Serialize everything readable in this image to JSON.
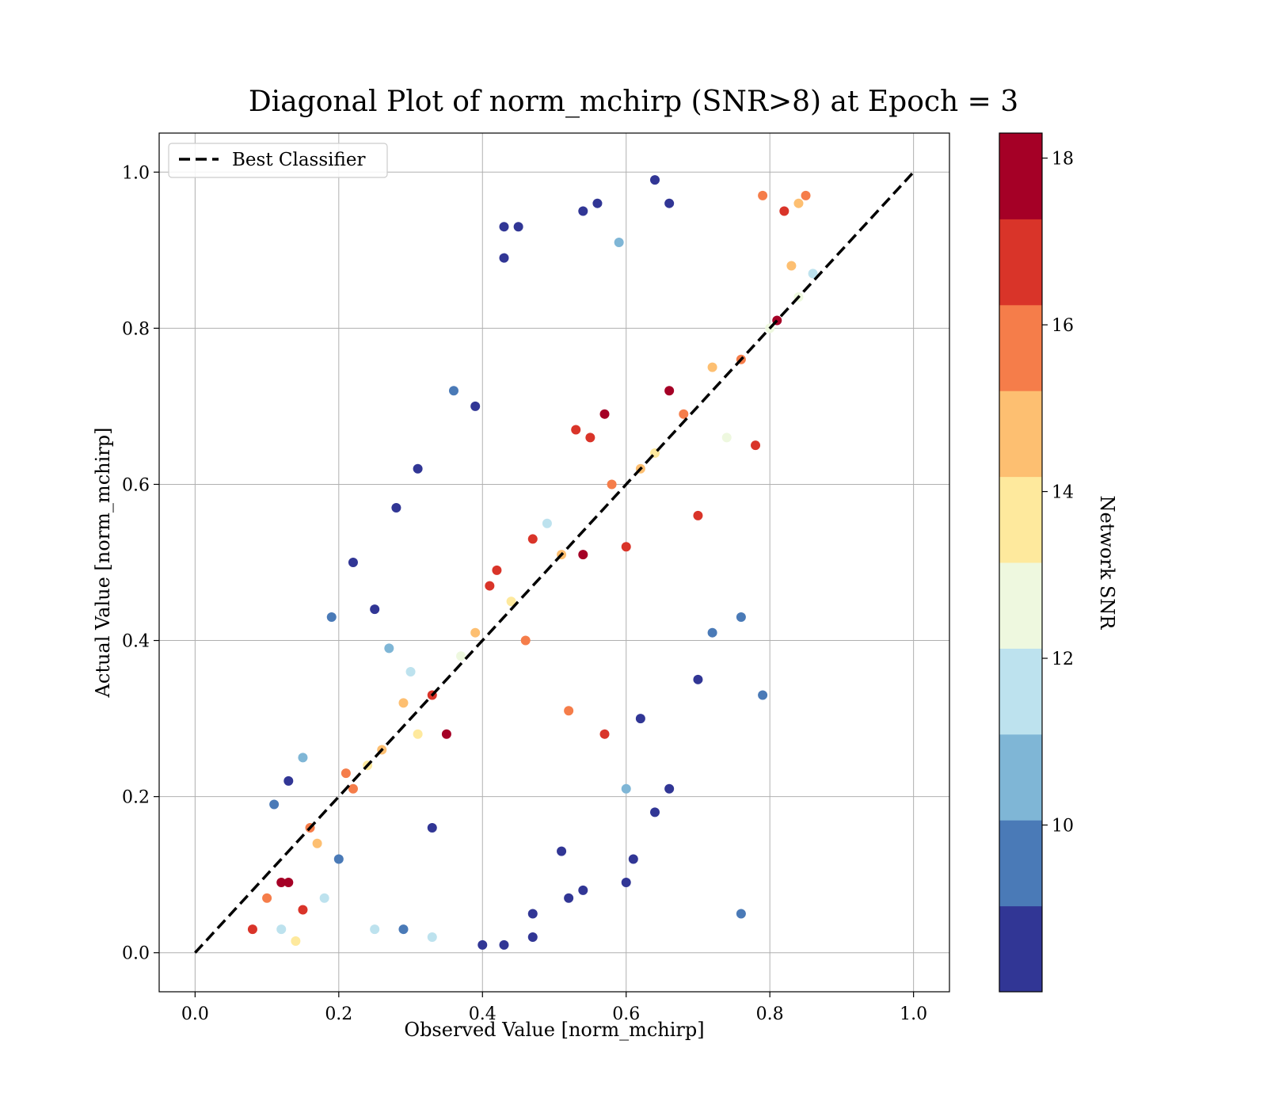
{
  "chart_data": {
    "type": "scatter",
    "title": "Diagonal Plot of norm_mchirp (SNR>8) at Epoch = 3",
    "xlabel": "Observed Value [norm_mchirp]",
    "ylabel": "Actual Value [norm_mchirp]",
    "xlim": [
      -0.05,
      1.05
    ],
    "ylim": [
      -0.05,
      1.05
    ],
    "xticks": [
      0.0,
      0.2,
      0.4,
      0.6,
      0.8,
      1.0
    ],
    "yticks": [
      0.0,
      0.2,
      0.4,
      0.6,
      0.8,
      1.0
    ],
    "x_tick_labels": [
      "0.0",
      "0.2",
      "0.4",
      "0.6",
      "0.8",
      "1.0"
    ],
    "y_tick_labels": [
      "0.0",
      "0.2",
      "0.4",
      "0.6",
      "0.8",
      "1.0"
    ],
    "grid": true,
    "legend": {
      "placement": "upper-left",
      "entries": [
        "Best Classifier"
      ]
    },
    "reference_line": {
      "name": "Best Classifier",
      "style": "dashed",
      "color": "#000000",
      "x": [
        0.0,
        1.0
      ],
      "y": [
        0.0,
        1.0
      ]
    },
    "colorbar": {
      "label": "Network SNR",
      "range": [
        8.0,
        18.3
      ],
      "ticks": [
        10,
        12,
        14,
        16,
        18
      ],
      "tick_labels": [
        "10",
        "12",
        "14",
        "16",
        "18"
      ],
      "bins": [
        {
          "from": 8.0,
          "to": 9.03,
          "color": "#313695"
        },
        {
          "from": 9.03,
          "to": 10.06,
          "color": "#4a7ab7"
        },
        {
          "from": 10.06,
          "to": 11.09,
          "color": "#7fb6d6"
        },
        {
          "from": 11.09,
          "to": 12.12,
          "color": "#bde2ee"
        },
        {
          "from": 12.12,
          "to": 13.15,
          "color": "#eef8df"
        },
        {
          "from": 13.15,
          "to": 14.18,
          "color": "#fee99d"
        },
        {
          "from": 14.18,
          "to": 15.21,
          "color": "#fdbf71"
        },
        {
          "from": 15.21,
          "to": 16.24,
          "color": "#f57d4a"
        },
        {
          "from": 16.24,
          "to": 17.27,
          "color": "#d93429"
        },
        {
          "from": 17.27,
          "to": 18.3,
          "color": "#a50026"
        }
      ]
    },
    "points": [
      [
        0.08,
        0.03,
        16.8
      ],
      [
        0.1,
        0.07,
        15.8
      ],
      [
        0.12,
        0.09,
        17.5
      ],
      [
        0.13,
        0.09,
        17.8
      ],
      [
        0.14,
        0.015,
        13.6
      ],
      [
        0.12,
        0.03,
        11.5
      ],
      [
        0.11,
        0.19,
        9.5
      ],
      [
        0.13,
        0.22,
        8.3
      ],
      [
        0.15,
        0.25,
        10.5
      ],
      [
        0.16,
        0.16,
        16.0
      ],
      [
        0.17,
        0.14,
        15.0
      ],
      [
        0.15,
        0.055,
        16.5
      ],
      [
        0.18,
        0.07,
        11.5
      ],
      [
        0.2,
        0.12,
        9.8
      ],
      [
        0.22,
        0.21,
        15.8
      ],
      [
        0.24,
        0.24,
        13.4
      ],
      [
        0.26,
        0.26,
        14.6
      ],
      [
        0.21,
        0.23,
        16.2
      ],
      [
        0.19,
        0.43,
        9.2
      ],
      [
        0.22,
        0.5,
        8.4
      ],
      [
        0.25,
        0.44,
        8.6
      ],
      [
        0.27,
        0.39,
        10.8
      ],
      [
        0.29,
        0.32,
        14.4
      ],
      [
        0.3,
        0.36,
        11.8
      ],
      [
        0.31,
        0.28,
        13.2
      ],
      [
        0.33,
        0.33,
        16.4
      ],
      [
        0.35,
        0.28,
        17.6
      ],
      [
        0.37,
        0.38,
        12.6
      ],
      [
        0.39,
        0.41,
        14.2
      ],
      [
        0.41,
        0.47,
        17.0
      ],
      [
        0.42,
        0.49,
        16.8
      ],
      [
        0.44,
        0.45,
        13.8
      ],
      [
        0.46,
        0.4,
        15.6
      ],
      [
        0.47,
        0.53,
        16.6
      ],
      [
        0.49,
        0.55,
        11.6
      ],
      [
        0.51,
        0.51,
        14.8
      ],
      [
        0.53,
        0.67,
        17.2
      ],
      [
        0.54,
        0.51,
        17.9
      ],
      [
        0.55,
        0.66,
        16.5
      ],
      [
        0.57,
        0.69,
        17.9
      ],
      [
        0.58,
        0.6,
        15.4
      ],
      [
        0.6,
        0.52,
        16.9
      ],
      [
        0.62,
        0.62,
        14.9
      ],
      [
        0.64,
        0.64,
        13.5
      ],
      [
        0.66,
        0.72,
        17.8
      ],
      [
        0.68,
        0.69,
        15.9
      ],
      [
        0.7,
        0.56,
        16.9
      ],
      [
        0.72,
        0.75,
        14.2
      ],
      [
        0.74,
        0.66,
        12.3
      ],
      [
        0.76,
        0.76,
        16.2
      ],
      [
        0.78,
        0.65,
        16.9
      ],
      [
        0.8,
        0.8,
        13.0
      ],
      [
        0.81,
        0.81,
        17.9
      ],
      [
        0.82,
        0.95,
        17.0
      ],
      [
        0.84,
        0.96,
        14.6
      ],
      [
        0.85,
        0.97,
        16.0
      ],
      [
        0.83,
        0.88,
        15.0
      ],
      [
        0.79,
        0.97,
        15.3
      ],
      [
        0.84,
        0.84,
        12.6
      ],
      [
        0.86,
        0.87,
        11.5
      ],
      [
        0.28,
        0.57,
        8.6
      ],
      [
        0.31,
        0.62,
        8.3
      ],
      [
        0.36,
        0.72,
        9.9
      ],
      [
        0.39,
        0.7,
        8.3
      ],
      [
        0.43,
        0.93,
        8.2
      ],
      [
        0.45,
        0.93,
        8.4
      ],
      [
        0.43,
        0.89,
        8.6
      ],
      [
        0.54,
        0.95,
        8.5
      ],
      [
        0.56,
        0.96,
        8.3
      ],
      [
        0.59,
        0.91,
        10.4
      ],
      [
        0.64,
        0.99,
        8.5
      ],
      [
        0.66,
        0.96,
        8.3
      ],
      [
        0.6,
        0.21,
        10.3
      ],
      [
        0.62,
        0.3,
        8.3
      ],
      [
        0.64,
        0.18,
        8.4
      ],
      [
        0.66,
        0.21,
        8.5
      ],
      [
        0.6,
        0.09,
        8.4
      ],
      [
        0.61,
        0.12,
        8.3
      ],
      [
        0.52,
        0.07,
        8.6
      ],
      [
        0.54,
        0.08,
        8.4
      ],
      [
        0.47,
        0.05,
        8.2
      ],
      [
        0.43,
        0.01,
        8.4
      ],
      [
        0.4,
        0.01,
        8.2
      ],
      [
        0.33,
        0.02,
        11.4
      ],
      [
        0.29,
        0.03,
        9.5
      ],
      [
        0.25,
        0.03,
        11.3
      ],
      [
        0.76,
        0.05,
        9.5
      ],
      [
        0.79,
        0.33,
        10.0
      ],
      [
        0.76,
        0.43,
        9.7
      ],
      [
        0.72,
        0.41,
        9.8
      ],
      [
        0.7,
        0.35,
        8.6
      ],
      [
        0.57,
        0.28,
        16.7
      ],
      [
        0.52,
        0.31,
        16.1
      ],
      [
        0.47,
        0.02,
        8.3
      ],
      [
        0.51,
        0.13,
        8.5
      ],
      [
        0.33,
        0.16,
        8.6
      ]
    ]
  }
}
